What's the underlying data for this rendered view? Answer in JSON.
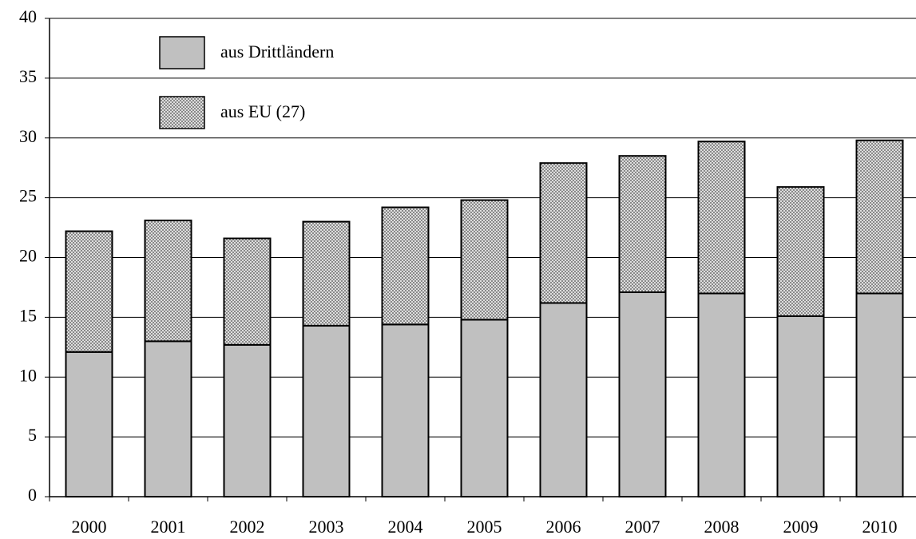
{
  "chart_data": {
    "type": "stacked_bar",
    "categories": [
      "2000",
      "2001",
      "2002",
      "2003",
      "2004",
      "2005",
      "2006",
      "2007",
      "2008",
      "2009",
      "2010"
    ],
    "series": [
      {
        "name": "aus Drittländern",
        "color": "#c0c0c0",
        "values": [
          12.1,
          13.0,
          12.7,
          14.3,
          14.4,
          14.8,
          16.2,
          17.1,
          17.0,
          15.1,
          17.0
        ]
      },
      {
        "name": "aus EU (27)",
        "color": "#808080",
        "values": [
          10.1,
          10.1,
          8.9,
          8.7,
          9.8,
          10.0,
          11.7,
          11.4,
          12.7,
          10.8,
          12.8
        ]
      }
    ],
    "ylim": [
      0,
      40
    ],
    "yticks": [
      0,
      5,
      10,
      15,
      20,
      25,
      30,
      35,
      40
    ],
    "grid": true
  }
}
